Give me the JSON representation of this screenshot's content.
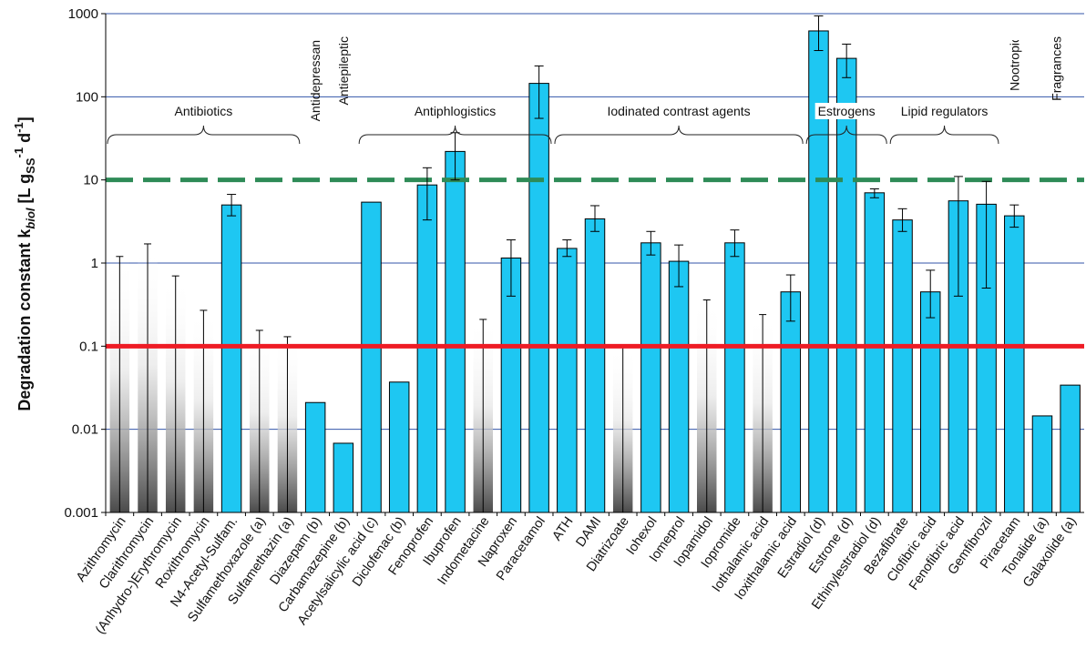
{
  "chart_data": {
    "type": "bar",
    "y_scale": "log",
    "ylim": [
      0.001,
      1000
    ],
    "ytick_labels": [
      "1000",
      "100",
      "10",
      "1",
      "0.1",
      "0.01",
      "0.001"
    ],
    "ylabel_main": "Degradation constant k",
    "ylabel_sub": "biol",
    "ylabel_bracket": " [L g",
    "ylabel_sub2": "SS",
    "ylabel_sup1": "-1",
    "ylabel_d": " d",
    "ylabel_sup2": "-1",
    "ylabel_end": "]",
    "grid_lines": [
      1000,
      100,
      1,
      0.01
    ],
    "threshold_lines": [
      {
        "value": 10,
        "style": "dashed",
        "color": "#2e8b57"
      },
      {
        "value": 0.1,
        "style": "solid",
        "color": "#ee1c25"
      }
    ],
    "categories": [
      "Azithromycin",
      "Clarithromycin",
      "(Anhydro-)Erythromycin",
      "Roxithromycin",
      "N4-Acetyl-Sulfam.",
      "Sulfamethoxazole (a)",
      "Sulfamethazin (a)",
      "Diazepam (b)",
      "Carbamazepine (b)",
      "Acetylsalicylic acid (c)",
      "Diclofenac (b)",
      "Fenoprofen",
      "Ibuprofen",
      "Indometacine",
      "Naproxen",
      "Paracetamol",
      "ATH",
      "DAMI",
      "Diatrizoate",
      "Iohexol",
      "Iomeprol",
      "Iopamidol",
      "Iopromide",
      "Iothalamic acid",
      "Ioxithalamic acid",
      "Estradiol (d)",
      "Estrone (d)",
      "Ethinylestradiol (d)",
      "Bezafibrate",
      "Clofibric acid",
      "Fenofibric acid",
      "Gemfibrozil",
      "Piracetam",
      "Tonalide (a)",
      "Galaxolide (a)"
    ],
    "values": [
      1.2,
      1.7,
      0.7,
      0.27,
      5.0,
      0.155,
      0.13,
      0.021,
      0.0068,
      5.4,
      0.037,
      8.7,
      22,
      0.21,
      1.15,
      145,
      1.5,
      3.4,
      0.1,
      1.75,
      1.05,
      0.36,
      1.75,
      0.24,
      0.45,
      620,
      290,
      7.0,
      3.3,
      0.45,
      5.6,
      5.1,
      3.7,
      0.0145,
      0.034
    ],
    "bar_kind": [
      "gradient",
      "gradient",
      "gradient",
      "gradient",
      "solid",
      "gradient",
      "gradient",
      "solid",
      "solid",
      "solid",
      "solid",
      "solid",
      "solid",
      "gradient",
      "solid",
      "solid",
      "solid",
      "solid",
      "gradient",
      "solid",
      "solid",
      "gradient",
      "solid",
      "gradient",
      "solid",
      "solid",
      "solid",
      "solid",
      "solid",
      "solid",
      "solid",
      "solid",
      "solid",
      "solid",
      "solid"
    ],
    "error_bars": [
      null,
      null,
      null,
      null,
      [
        3.7,
        6.7
      ],
      null,
      null,
      null,
      null,
      null,
      null,
      [
        3.3,
        14
      ],
      [
        10,
        37
      ],
      null,
      [
        0.4,
        1.9
      ],
      [
        55,
        235
      ],
      [
        1.2,
        1.9
      ],
      [
        2.4,
        4.9
      ],
      null,
      [
        1.25,
        2.4
      ],
      [
        0.52,
        1.65
      ],
      null,
      [
        1.2,
        2.5
      ],
      null,
      [
        0.2,
        0.72
      ],
      [
        360,
        940
      ],
      [
        170,
        430
      ],
      [
        6.1,
        7.8
      ],
      [
        2.4,
        4.5
      ],
      [
        0.22,
        0.82
      ],
      [
        0.4,
        11
      ],
      [
        0.5,
        9.6
      ],
      [
        2.7,
        5.0
      ],
      null,
      null
    ],
    "bar_color": "#1ec7f2",
    "groups": [
      {
        "label": "Antibiotics",
        "from": 0,
        "to": 6,
        "orientation": "horizontal"
      },
      {
        "label": "Antidepressant",
        "from": 7,
        "to": 7,
        "orientation": "vertical"
      },
      {
        "label": "Antiepileptic",
        "from": 8,
        "to": 8,
        "orientation": "vertical"
      },
      {
        "label": "Antiphlogistics",
        "from": 9,
        "to": 15,
        "orientation": "horizontal"
      },
      {
        "label": "Iodinated contrast agents",
        "from": 16,
        "to": 24,
        "orientation": "horizontal"
      },
      {
        "label": "Estrogens",
        "from": 25,
        "to": 27,
        "orientation": "horizontal"
      },
      {
        "label": "Lipid regulators",
        "from": 28,
        "to": 31,
        "orientation": "horizontal"
      },
      {
        "label": "Nootropic",
        "from": 32,
        "to": 32,
        "orientation": "vertical"
      },
      {
        "label": "Fragrances",
        "from": 33,
        "to": 34,
        "orientation": "vertical"
      }
    ]
  }
}
